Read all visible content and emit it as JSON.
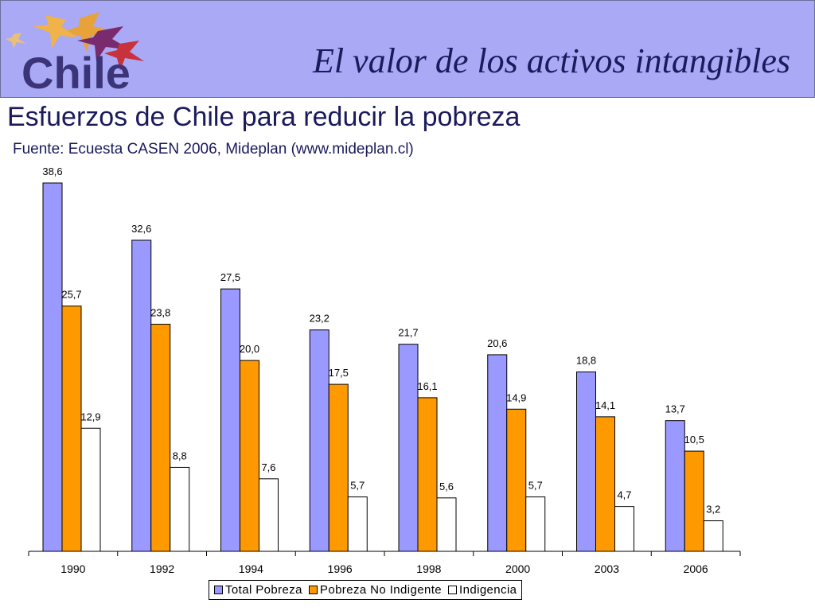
{
  "header": {
    "logo_text": "Chile",
    "title": "El valor de los activos intangibles"
  },
  "subtitle": "Esfuerzos de Chile para reducir la pobreza",
  "source": "Fuente: Ecuesta CASEN 2006, Mideplan (www.mideplan.cl)",
  "colors": {
    "header_bg": "#a9a9f5",
    "total": "#9999ff",
    "no_indigente": "#ff9900",
    "indigencia": "#ffffff"
  },
  "chart_data": {
    "type": "bar",
    "categories": [
      "1990",
      "1992",
      "1994",
      "1996",
      "1998",
      "2000",
      "2003",
      "2006"
    ],
    "series": [
      {
        "name": "Total Pobreza",
        "color": "#9999ff",
        "values": [
          38.6,
          32.6,
          27.5,
          23.2,
          21.7,
          20.6,
          18.8,
          13.7
        ],
        "labels": [
          "38,6",
          "32,6",
          "27,5",
          "23,2",
          "21,7",
          "20,6",
          "18,8",
          "13,7"
        ]
      },
      {
        "name": "Pobreza No Indigente",
        "color": "#ff9900",
        "values": [
          25.7,
          23.8,
          20.0,
          17.5,
          16.1,
          14.9,
          14.1,
          10.5
        ],
        "labels": [
          "25,7",
          "23,8",
          "20,0",
          "17,5",
          "16,1",
          "14,9",
          "14,1",
          "10,5"
        ]
      },
      {
        "name": "Indigencia",
        "color": "#ffffff",
        "values": [
          12.9,
          8.8,
          7.6,
          5.7,
          5.6,
          5.7,
          4.7,
          3.2
        ],
        "labels": [
          "12,9",
          "8,8",
          "7,6",
          "5,7",
          "5,6",
          "5,7",
          "4,7",
          "3,2"
        ]
      }
    ],
    "ylim": [
      0,
      38.6
    ],
    "grid": false,
    "legend_position": "bottom"
  }
}
